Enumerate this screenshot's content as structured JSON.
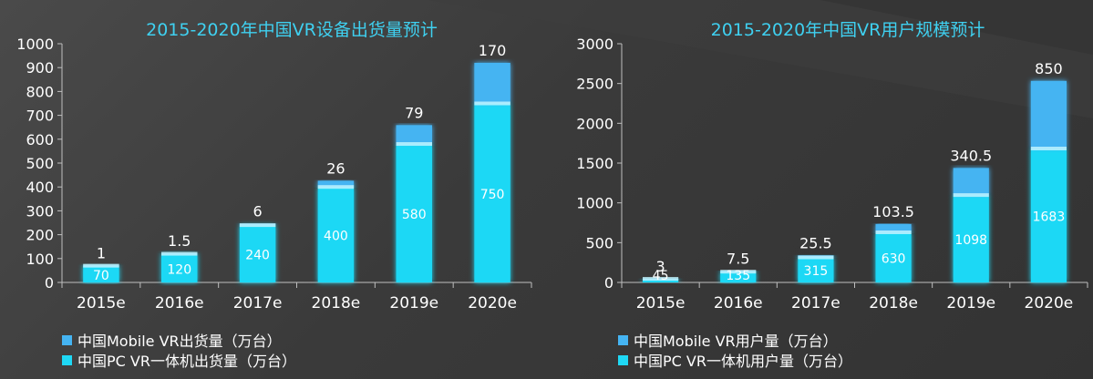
{
  "chart_data": [
    {
      "type": "bar",
      "stacked": true,
      "title": "2015-2020年中国VR设备出货量预计",
      "categories": [
        "2015e",
        "2016e",
        "2017e",
        "2018e",
        "2019e",
        "2020e"
      ],
      "ylim": [
        0,
        1000
      ],
      "yticks": [
        0,
        100,
        200,
        300,
        400,
        500,
        600,
        700,
        800,
        900,
        1000
      ],
      "series": [
        {
          "name": "中国PC VR一体机出货量（万台）",
          "values": [
            70,
            120,
            240,
            400,
            580,
            750
          ],
          "labels": [
            "70",
            "120",
            "240",
            "400",
            "580",
            "750"
          ],
          "color": "#1fd8f5"
        },
        {
          "name": "中国Mobile VR出货量（万台）",
          "values": [
            1,
            1.5,
            6,
            26,
            79,
            170
          ],
          "labels": [
            "1",
            "1.5",
            "6",
            "26",
            "79",
            "170"
          ],
          "color": "#45b4f2"
        }
      ],
      "legend_position": "bottom-left"
    },
    {
      "type": "bar",
      "stacked": true,
      "title": "2015-2020年中国VR用户规模预计",
      "categories": [
        "2015e",
        "2016e",
        "2017e",
        "2018e",
        "2019e",
        "2020e"
      ],
      "ylim": [
        0,
        3000
      ],
      "yticks": [
        0,
        500,
        1000,
        1500,
        2000,
        2500,
        3000
      ],
      "series": [
        {
          "name": "中国PC VR一体机用户量（万台）",
          "values": [
            45,
            135,
            315,
            630,
            1098,
            1683
          ],
          "labels": [
            "45",
            "135",
            "315",
            "630",
            "1098",
            "1683"
          ],
          "color": "#1fd8f5"
        },
        {
          "name": "中国Mobile VR用户量（万台）",
          "values": [
            3,
            7.5,
            25.5,
            103.5,
            340.5,
            850
          ],
          "labels": [
            "3",
            "7.5",
            "25.5",
            "103.5",
            "340.5",
            "850"
          ],
          "color": "#45b4f2"
        }
      ],
      "legend_position": "bottom-left"
    }
  ]
}
